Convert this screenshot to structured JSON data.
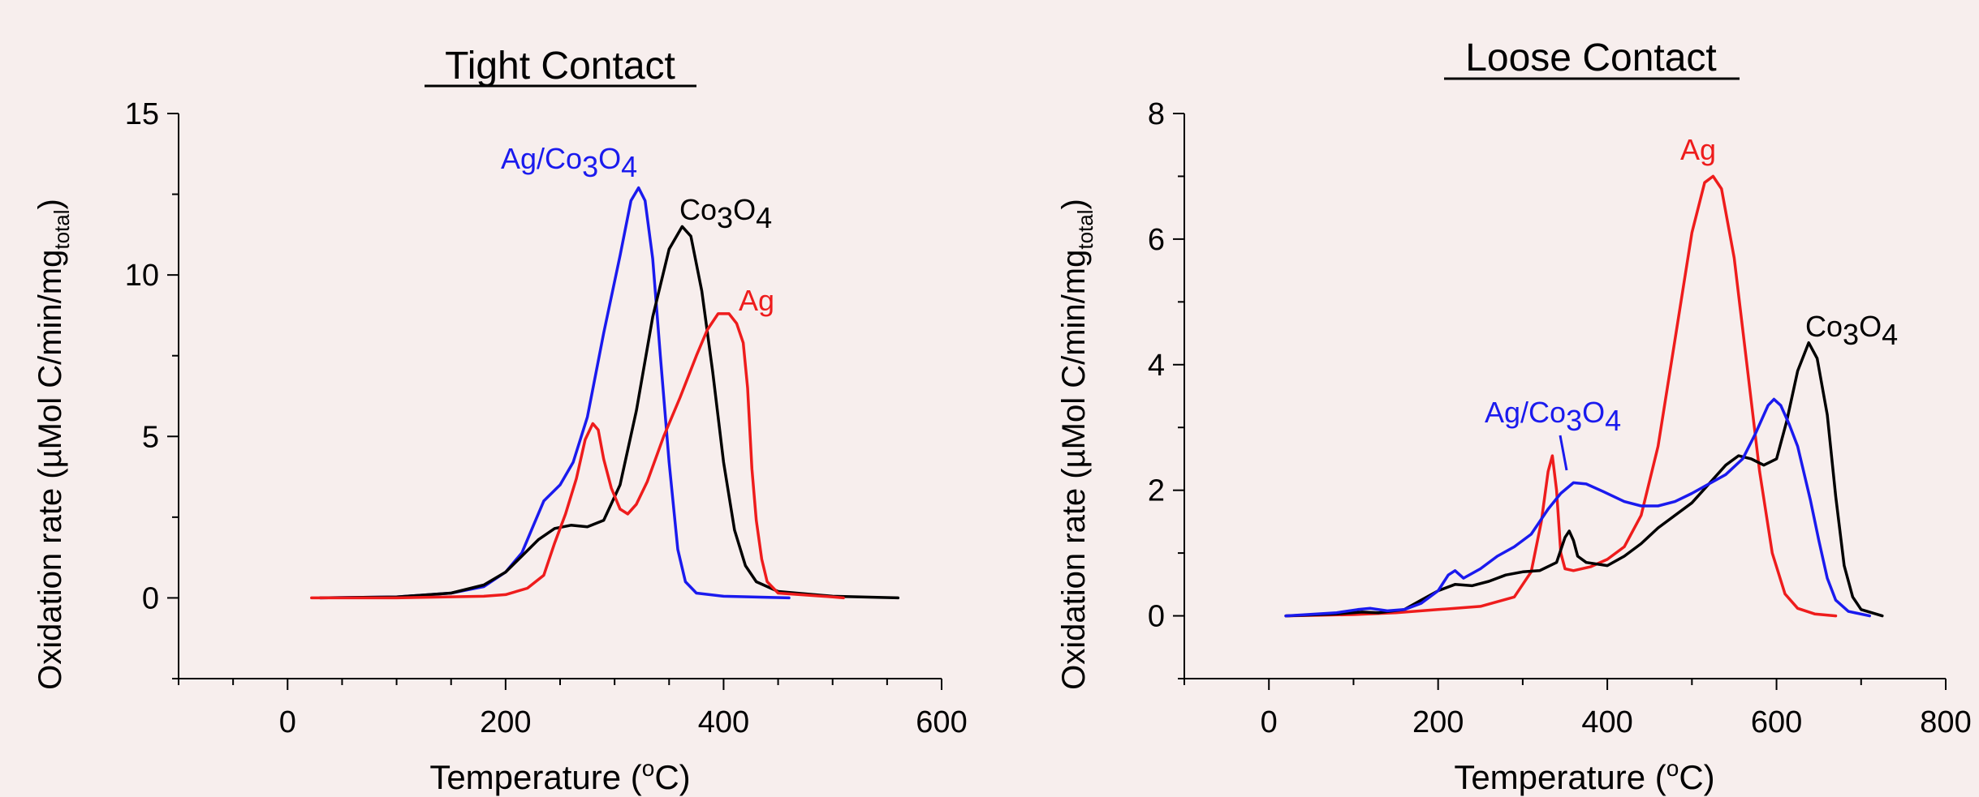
{
  "colors": {
    "background": "#f7eeed",
    "axis": "#000000",
    "Ag": "#ee1c1c",
    "Co3O4": "#000000",
    "Ag_Co3O4": "#1a1aee"
  },
  "chart_data": [
    {
      "type": "line",
      "title": "Tight Contact",
      "xlabel": "Temperature (°C)",
      "ylabel": "Oxidation rate (µMol C/min/mg_total)",
      "xlim": [
        -100,
        600
      ],
      "ylim": [
        -2.5,
        15
      ],
      "xticks": [
        0,
        200,
        400,
        600
      ],
      "yticks": [
        0,
        5,
        10,
        15
      ],
      "grid": false,
      "legend": "inline labels",
      "series": [
        {
          "name": "Ag/Co3O4",
          "color_key": "Ag_Co3O4",
          "label_sub": [
            "Ag/Co",
            "3",
            "O",
            "4"
          ],
          "points": [
            [
              30,
              0
            ],
            [
              100,
              0.03
            ],
            [
              150,
              0.15
            ],
            [
              180,
              0.35
            ],
            [
              200,
              0.8
            ],
            [
              215,
              1.4
            ],
            [
              225,
              2.2
            ],
            [
              235,
              3.0
            ],
            [
              250,
              3.5
            ],
            [
              262,
              4.2
            ],
            [
              275,
              5.6
            ],
            [
              290,
              8.2
            ],
            [
              305,
              10.6
            ],
            [
              315,
              12.3
            ],
            [
              322,
              12.7
            ],
            [
              328,
              12.3
            ],
            [
              335,
              10.5
            ],
            [
              342,
              7.5
            ],
            [
              350,
              4.2
            ],
            [
              358,
              1.5
            ],
            [
              365,
              0.5
            ],
            [
              375,
              0.15
            ],
            [
              400,
              0.05
            ],
            [
              460,
              0
            ]
          ]
        },
        {
          "name": "Co3O4",
          "color_key": "Co3O4",
          "label_sub": [
            "Co",
            "3",
            "O",
            "4"
          ],
          "points": [
            [
              30,
              0
            ],
            [
              100,
              0.03
            ],
            [
              150,
              0.15
            ],
            [
              180,
              0.4
            ],
            [
              200,
              0.8
            ],
            [
              215,
              1.3
            ],
            [
              230,
              1.8
            ],
            [
              245,
              2.15
            ],
            [
              260,
              2.25
            ],
            [
              275,
              2.2
            ],
            [
              290,
              2.4
            ],
            [
              305,
              3.5
            ],
            [
              320,
              5.8
            ],
            [
              335,
              8.7
            ],
            [
              350,
              10.8
            ],
            [
              362,
              11.5
            ],
            [
              370,
              11.2
            ],
            [
              380,
              9.5
            ],
            [
              390,
              7.0
            ],
            [
              400,
              4.2
            ],
            [
              410,
              2.1
            ],
            [
              420,
              1.0
            ],
            [
              430,
              0.5
            ],
            [
              450,
              0.2
            ],
            [
              500,
              0.05
            ],
            [
              560,
              0
            ]
          ]
        },
        {
          "name": "Ag",
          "color_key": "Ag",
          "label_sub": [
            "Ag"
          ],
          "points": [
            [
              22,
              0
            ],
            [
              100,
              0
            ],
            [
              180,
              0.05
            ],
            [
              200,
              0.1
            ],
            [
              220,
              0.3
            ],
            [
              235,
              0.7
            ],
            [
              245,
              1.7
            ],
            [
              255,
              2.6
            ],
            [
              265,
              3.7
            ],
            [
              273,
              4.9
            ],
            [
              280,
              5.4
            ],
            [
              285,
              5.2
            ],
            [
              290,
              4.3
            ],
            [
              297,
              3.4
            ],
            [
              305,
              2.75
            ],
            [
              312,
              2.6
            ],
            [
              320,
              2.9
            ],
            [
              330,
              3.6
            ],
            [
              345,
              5.0
            ],
            [
              360,
              6.2
            ],
            [
              375,
              7.5
            ],
            [
              385,
              8.3
            ],
            [
              395,
              8.8
            ],
            [
              405,
              8.8
            ],
            [
              412,
              8.5
            ],
            [
              418,
              7.9
            ],
            [
              422,
              6.5
            ],
            [
              426,
              4.0
            ],
            [
              430,
              2.4
            ],
            [
              435,
              1.2
            ],
            [
              440,
              0.5
            ],
            [
              450,
              0.15
            ],
            [
              500,
              0.03
            ],
            [
              510,
              0
            ]
          ]
        }
      ]
    },
    {
      "type": "line",
      "title": "Loose Contact",
      "xlabel": "Temperature (°C)",
      "ylabel": "Oxidation rate (µMol C/min/mg_total)",
      "xlim": [
        -100,
        800
      ],
      "ylim": [
        -1,
        8
      ],
      "xticks": [
        0,
        200,
        400,
        600,
        800
      ],
      "yticks": [
        0,
        2,
        4,
        6,
        8
      ],
      "grid": false,
      "legend": "inline labels",
      "series": [
        {
          "name": "Ag",
          "color_key": "Ag",
          "label_sub": [
            "Ag"
          ],
          "points": [
            [
              20,
              0
            ],
            [
              100,
              0.02
            ],
            [
              150,
              0.05
            ],
            [
              200,
              0.1
            ],
            [
              250,
              0.15
            ],
            [
              290,
              0.3
            ],
            [
              310,
              0.7
            ],
            [
              322,
              1.5
            ],
            [
              330,
              2.3
            ],
            [
              335,
              2.55
            ],
            [
              340,
              2.0
            ],
            [
              345,
              1.0
            ],
            [
              350,
              0.75
            ],
            [
              360,
              0.72
            ],
            [
              380,
              0.78
            ],
            [
              400,
              0.9
            ],
            [
              420,
              1.1
            ],
            [
              440,
              1.6
            ],
            [
              460,
              2.7
            ],
            [
              480,
              4.4
            ],
            [
              500,
              6.1
            ],
            [
              515,
              6.9
            ],
            [
              525,
              7.0
            ],
            [
              535,
              6.8
            ],
            [
              550,
              5.7
            ],
            [
              565,
              4.0
            ],
            [
              580,
              2.3
            ],
            [
              595,
              1.0
            ],
            [
              610,
              0.35
            ],
            [
              625,
              0.12
            ],
            [
              645,
              0.03
            ],
            [
              670,
              0
            ]
          ]
        },
        {
          "name": "Co3O4",
          "color_key": "Co3O4",
          "label_sub": [
            "Co",
            "3",
            "O",
            "4"
          ],
          "points": [
            [
              20,
              0
            ],
            [
              80,
              0.03
            ],
            [
              110,
              0.06
            ],
            [
              130,
              0.05
            ],
            [
              160,
              0.1
            ],
            [
              180,
              0.25
            ],
            [
              200,
              0.4
            ],
            [
              220,
              0.5
            ],
            [
              240,
              0.48
            ],
            [
              260,
              0.55
            ],
            [
              280,
              0.65
            ],
            [
              300,
              0.7
            ],
            [
              320,
              0.72
            ],
            [
              340,
              0.85
            ],
            [
              350,
              1.25
            ],
            [
              355,
              1.35
            ],
            [
              360,
              1.2
            ],
            [
              365,
              0.95
            ],
            [
              375,
              0.85
            ],
            [
              400,
              0.8
            ],
            [
              420,
              0.95
            ],
            [
              440,
              1.15
            ],
            [
              460,
              1.4
            ],
            [
              500,
              1.8
            ],
            [
              520,
              2.1
            ],
            [
              540,
              2.4
            ],
            [
              555,
              2.55
            ],
            [
              570,
              2.5
            ],
            [
              585,
              2.4
            ],
            [
              600,
              2.5
            ],
            [
              612,
              3.1
            ],
            [
              625,
              3.9
            ],
            [
              638,
              4.35
            ],
            [
              648,
              4.1
            ],
            [
              660,
              3.2
            ],
            [
              670,
              1.9
            ],
            [
              680,
              0.8
            ],
            [
              690,
              0.3
            ],
            [
              700,
              0.1
            ],
            [
              725,
              0
            ]
          ]
        },
        {
          "name": "Ag/Co3O4",
          "color_key": "Ag_Co3O4",
          "label_sub": [
            "Ag/Co",
            "3",
            "O",
            "4"
          ],
          "points": [
            [
              20,
              0
            ],
            [
              80,
              0.05
            ],
            [
              105,
              0.1
            ],
            [
              120,
              0.12
            ],
            [
              140,
              0.08
            ],
            [
              160,
              0.1
            ],
            [
              180,
              0.2
            ],
            [
              200,
              0.4
            ],
            [
              212,
              0.65
            ],
            [
              220,
              0.72
            ],
            [
              230,
              0.6
            ],
            [
              250,
              0.75
            ],
            [
              270,
              0.95
            ],
            [
              290,
              1.1
            ],
            [
              310,
              1.3
            ],
            [
              330,
              1.7
            ],
            [
              345,
              1.95
            ],
            [
              360,
              2.12
            ],
            [
              375,
              2.1
            ],
            [
              395,
              1.98
            ],
            [
              420,
              1.82
            ],
            [
              440,
              1.75
            ],
            [
              460,
              1.75
            ],
            [
              480,
              1.82
            ],
            [
              500,
              1.95
            ],
            [
              520,
              2.1
            ],
            [
              540,
              2.25
            ],
            [
              560,
              2.5
            ],
            [
              575,
              2.9
            ],
            [
              590,
              3.35
            ],
            [
              597,
              3.45
            ],
            [
              605,
              3.35
            ],
            [
              615,
              3.05
            ],
            [
              625,
              2.7
            ],
            [
              640,
              1.85
            ],
            [
              650,
              1.2
            ],
            [
              660,
              0.6
            ],
            [
              670,
              0.25
            ],
            [
              685,
              0.07
            ],
            [
              710,
              0
            ]
          ]
        }
      ]
    }
  ]
}
